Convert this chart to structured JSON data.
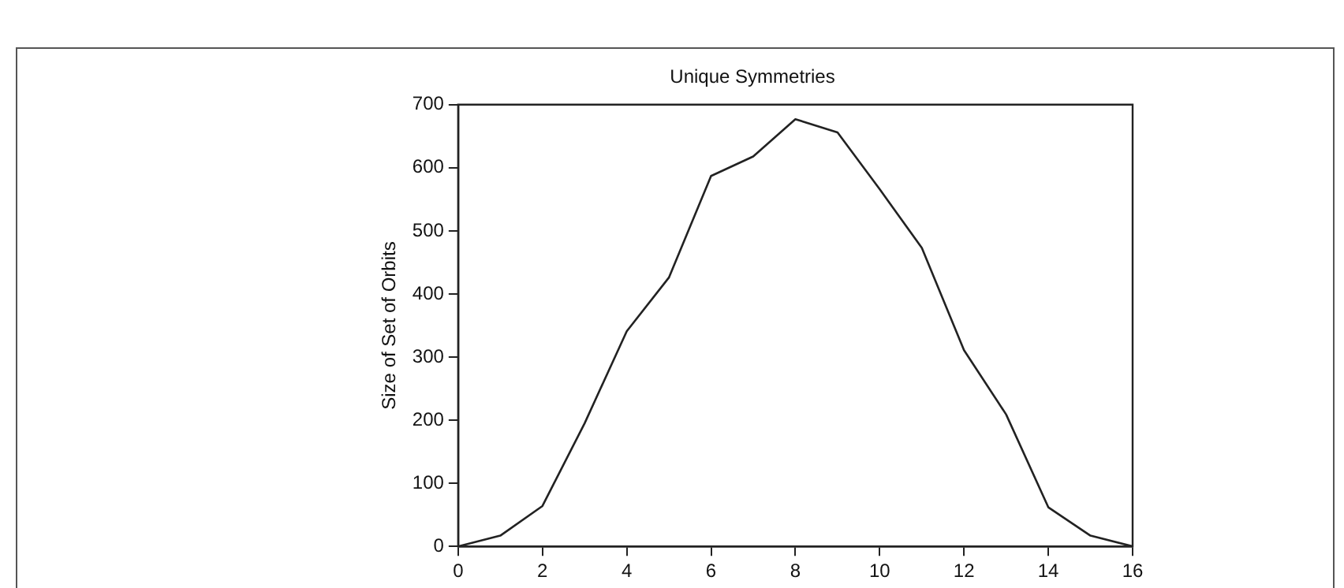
{
  "chart_data": {
    "type": "line",
    "title": "Unique Symmetries",
    "ylabel": "Size of Set of Orbits",
    "x": [
      0,
      1,
      2,
      3,
      4,
      5,
      6,
      7,
      8,
      9,
      10,
      11,
      12,
      13,
      14,
      15,
      16
    ],
    "series": [
      {
        "color": "#222222",
        "values": [
          0,
          17,
          64,
          195,
          341,
          426,
          587,
          618,
          677,
          656,
          566,
          473,
          311,
          209,
          62,
          17,
          0
        ]
      }
    ],
    "xlim": [
      0,
      16
    ],
    "xticks": [
      0,
      2,
      4,
      6,
      8,
      10,
      12,
      14,
      16
    ],
    "ylim": [
      0,
      700
    ],
    "yticks": [
      0,
      100,
      200,
      300,
      400,
      500,
      600,
      700
    ],
    "grid": false,
    "legend": false,
    "marker": "none",
    "line_style": "solid"
  }
}
